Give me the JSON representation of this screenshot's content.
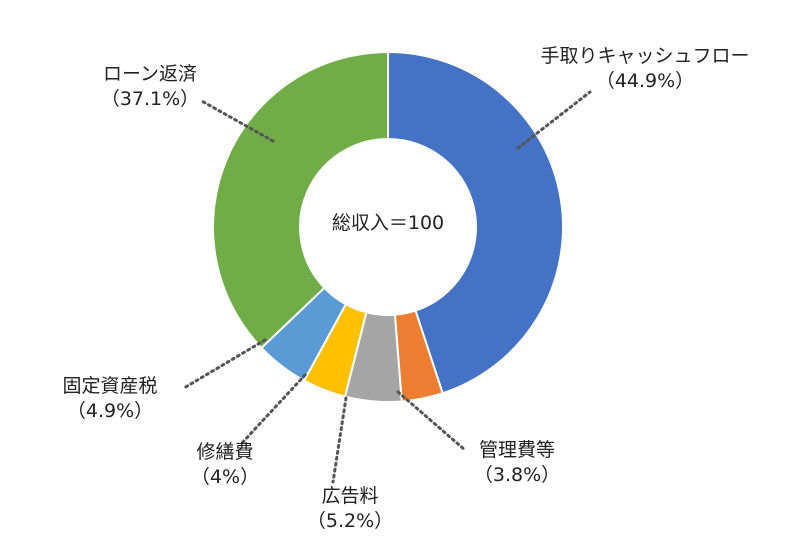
{
  "chart_data": {
    "type": "pie",
    "donut": true,
    "center_label": "総収入＝100",
    "slices": [
      {
        "label": "手取りキャッシュフロー",
        "pct_label": "（44.9%）",
        "value": 44.9,
        "color": "#4472C4"
      },
      {
        "label": "管理費等",
        "pct_label": "（3.8%）",
        "value": 3.8,
        "color": "#ED7D31"
      },
      {
        "label": "広告料",
        "pct_label": "（5.2%）",
        "value": 5.2,
        "color": "#A5A5A5"
      },
      {
        "label": "修繕費",
        "pct_label": "（4%）",
        "value": 4,
        "color": "#FFC000"
      },
      {
        "label": "固定資産税",
        "pct_label": "（4.9%）",
        "value": 4.9,
        "color": "#5B9BD5"
      },
      {
        "label": "ローン返済",
        "pct_label": "（37.1%）",
        "value": 37.1,
        "color": "#70AD47"
      }
    ],
    "legend": "none"
  }
}
